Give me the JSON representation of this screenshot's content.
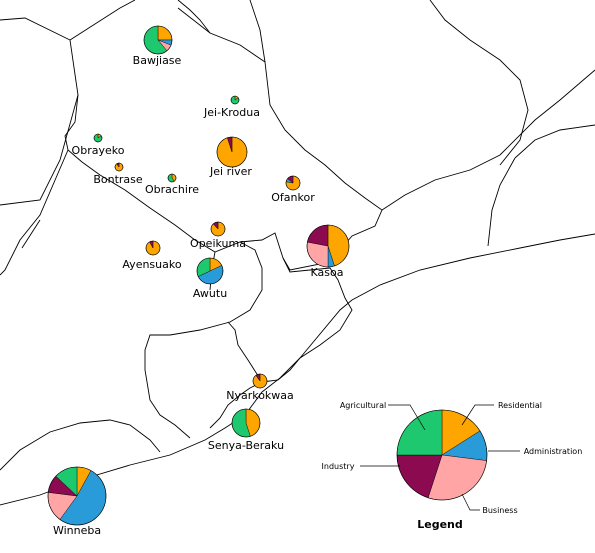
{
  "categories": [
    "Residential",
    "Administration",
    "Business",
    "Industry",
    "Agricultural"
  ],
  "colors": {
    "Residential": "#ffa500",
    "Administration": "#2a9bd9",
    "Business": "#ffa5a5",
    "Industry": "#8b0a50",
    "Agricultural": "#1ec86e"
  },
  "legend": {
    "title": "Legend",
    "labels": {
      "Residential": "Residential",
      "Administration": "Administration",
      "Business": "Business",
      "Industry": "Industry",
      "Agricultural": "Agricultural"
    },
    "shares": [
      0.16,
      0.11,
      0.28,
      0.2,
      0.25
    ]
  },
  "towns": [
    {
      "name": "Bawjiase",
      "shares": [
        0.25,
        0.06,
        0.08,
        0.0,
        0.61
      ]
    },
    {
      "name": "Jei-Krodua",
      "shares": [
        0.15,
        0.0,
        0.0,
        0.0,
        0.85
      ]
    },
    {
      "name": "Obrayeko",
      "shares": [
        0.15,
        0.0,
        0.0,
        0.0,
        0.85
      ]
    },
    {
      "name": "Jei river",
      "shares": [
        0.95,
        0.0,
        0.0,
        0.05,
        0.0
      ]
    },
    {
      "name": "Bontrase",
      "shares": [
        0.9,
        0.0,
        0.0,
        0.1,
        0.0
      ]
    },
    {
      "name": "Obrachire",
      "shares": [
        0.4,
        0.0,
        0.0,
        0.0,
        0.6
      ]
    },
    {
      "name": "Ofankor",
      "shares": [
        0.78,
        0.08,
        0.0,
        0.14,
        0.0
      ]
    },
    {
      "name": "Opeikuma",
      "shares": [
        0.88,
        0.0,
        0.0,
        0.12,
        0.0
      ]
    },
    {
      "name": "Kasoa",
      "shares": [
        0.45,
        0.05,
        0.28,
        0.22,
        0.0
      ]
    },
    {
      "name": "Ayensuako",
      "shares": [
        0.92,
        0.0,
        0.0,
        0.08,
        0.0
      ]
    },
    {
      "name": "Awutu",
      "shares": [
        0.18,
        0.5,
        0.0,
        0.0,
        0.32
      ]
    },
    {
      "name": "Nyarkokwaa",
      "shares": [
        0.9,
        0.0,
        0.0,
        0.1,
        0.0
      ]
    },
    {
      "name": "Senya-Beraku",
      "shares": [
        0.45,
        0.0,
        0.0,
        0.0,
        0.55
      ]
    },
    {
      "name": "Winneba",
      "shares": [
        0.08,
        0.52,
        0.17,
        0.1,
        0.13
      ]
    }
  ]
}
